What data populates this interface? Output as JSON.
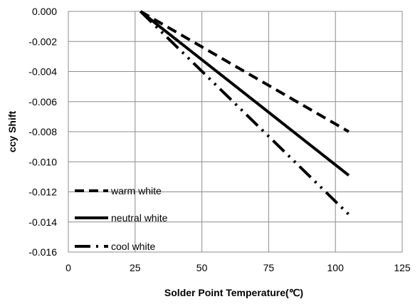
{
  "chart_data": {
    "type": "line",
    "title": "",
    "xlabel": "Solder Point Temperature(℃)",
    "ylabel": "ccy Shift",
    "xlim": [
      0,
      125
    ],
    "ylim": [
      -0.016,
      0.0
    ],
    "x_ticks": [
      {
        "value": 0,
        "label": "0"
      },
      {
        "value": 25,
        "label": "25"
      },
      {
        "value": 50,
        "label": "50"
      },
      {
        "value": 75,
        "label": "75"
      },
      {
        "value": 100,
        "label": "100"
      },
      {
        "value": 125,
        "label": "125"
      }
    ],
    "y_ticks": [
      {
        "value": 0.0,
        "label": "0.000"
      },
      {
        "value": -0.002,
        "label": "-0.002"
      },
      {
        "value": -0.004,
        "label": "-0.004"
      },
      {
        "value": -0.006,
        "label": "-0.006"
      },
      {
        "value": -0.008,
        "label": "-0.008"
      },
      {
        "value": -0.01,
        "label": "-0.010"
      },
      {
        "value": -0.012,
        "label": "-0.012"
      },
      {
        "value": -0.014,
        "label": "-0.014"
      },
      {
        "value": -0.016,
        "label": "-0.016"
      }
    ],
    "grid": true,
    "legend_position": "bottom-left",
    "series": [
      {
        "name": "warm white",
        "x": [
          27,
          105
        ],
        "y": [
          0.0,
          -0.008
        ],
        "dash": "dashed",
        "color": "#000000"
      },
      {
        "name": "neutral white",
        "x": [
          27,
          105
        ],
        "y": [
          0.0,
          -0.0109
        ],
        "dash": "solid",
        "color": "#000000"
      },
      {
        "name": "cool white",
        "x": [
          27,
          105
        ],
        "y": [
          0.0,
          -0.0135
        ],
        "dash": "dash-dot-dot",
        "color": "#000000"
      }
    ]
  }
}
